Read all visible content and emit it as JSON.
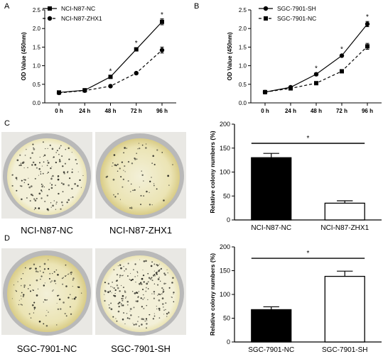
{
  "panel_labels": [
    "A",
    "B",
    "C",
    "D"
  ],
  "colors": {
    "ink": "#000000",
    "dish_rim": "#b9b9b9",
    "dish_light": "#f3f0d8",
    "dish_warm": "#ebe4b4",
    "dish_edge_warm": "#d9cc86",
    "dish_bg": "#e9e8e4",
    "colony_dots": "#2d2d25"
  },
  "photos": {
    "C": {
      "left_caption": "NCI-N87-NC",
      "right_caption": "NCI-N87-ZHX1"
    },
    "D": {
      "left_caption": "SGC-7901-NC",
      "right_caption": "SGC-7901-SH"
    }
  },
  "chart_data": [
    {
      "panel": "A",
      "type": "line",
      "ylabel": "OD Value (450nm)",
      "xlabel": "",
      "categories": [
        "0 h",
        "24 h",
        "48 h",
        "72 h",
        "96 h"
      ],
      "ylim": [
        0,
        2.5
      ],
      "yticks": [
        0.0,
        0.5,
        1.0,
        1.5,
        2.0,
        2.5
      ],
      "ytick_labels": [
        "0.0",
        "0.5",
        "1.0",
        "1.5",
        "2.0",
        "2.5"
      ],
      "series": [
        {
          "name": "NCI-N87-NC",
          "marker": "square",
          "dash": "solid",
          "values": [
            0.28,
            0.34,
            0.7,
            1.44,
            2.18
          ],
          "errors": [
            0.02,
            0.02,
            0.03,
            0.03,
            0.08
          ]
        },
        {
          "name": "NCI-N87-ZHX1",
          "marker": "circle",
          "dash": "dashed",
          "values": [
            0.27,
            0.33,
            0.45,
            0.8,
            1.42
          ],
          "errors": [
            0.02,
            0.02,
            0.02,
            0.03,
            0.08
          ]
        }
      ],
      "significance": [
        {
          "category": "48 h",
          "y": 0.85,
          "text": "*"
        },
        {
          "category": "72 h",
          "y": 1.6,
          "text": "*"
        },
        {
          "category": "96 h",
          "y": 2.37,
          "text": "*"
        }
      ],
      "legend": "top-left"
    },
    {
      "panel": "B",
      "type": "line",
      "ylabel": "OD Value (450nm)",
      "xlabel": "",
      "categories": [
        "0 h",
        "24 h",
        "48 h",
        "72 h",
        "96 h"
      ],
      "ylim": [
        0,
        2.5
      ],
      "yticks": [
        0.0,
        0.5,
        1.0,
        1.5,
        2.0,
        2.5
      ],
      "ytick_labels": [
        "0.0",
        "0.5",
        "1.0",
        "1.5",
        "2.0",
        "2.5"
      ],
      "series": [
        {
          "name": "SGC-7901-SH",
          "marker": "circle",
          "dash": "solid",
          "values": [
            0.29,
            0.42,
            0.77,
            1.27,
            2.12
          ],
          "errors": [
            0.02,
            0.02,
            0.04,
            0.03,
            0.07
          ]
        },
        {
          "name": "SGC-7901-NC",
          "marker": "square",
          "dash": "dashed",
          "values": [
            0.29,
            0.39,
            0.53,
            0.85,
            1.52
          ],
          "errors": [
            0.02,
            0.02,
            0.02,
            0.03,
            0.08
          ]
        }
      ],
      "significance": [
        {
          "category": "48 h",
          "y": 0.93,
          "text": "*"
        },
        {
          "category": "72 h",
          "y": 1.44,
          "text": "*"
        },
        {
          "category": "96 h",
          "y": 2.31,
          "text": "*"
        }
      ],
      "legend": "top-left"
    },
    {
      "panel": "C",
      "type": "bar",
      "ylabel": "Relative colony numbers (%)",
      "xlabel": "",
      "categories": [
        "NCI-N87-NC",
        "NCI-N87-ZHX1"
      ],
      "values": [
        130,
        35
      ],
      "errors": [
        9,
        5
      ],
      "fills": [
        "#000000",
        "#ffffff"
      ],
      "ylim": [
        0,
        200
      ],
      "yticks": [
        0,
        50,
        100,
        150,
        200
      ],
      "ytick_labels": [
        "0",
        "50",
        "100",
        "150",
        "200"
      ],
      "significance": {
        "y": 160,
        "text": "*"
      }
    },
    {
      "panel": "D",
      "type": "bar",
      "ylabel": "Relative colony numbers (%)",
      "xlabel": "",
      "categories": [
        "SGC-7901-NC",
        "SGC-7901-SH"
      ],
      "values": [
        68,
        138
      ],
      "errors": [
        6,
        11
      ],
      "fills": [
        "#000000",
        "#ffffff"
      ],
      "ylim": [
        0,
        200
      ],
      "yticks": [
        0,
        50,
        100,
        150,
        200
      ],
      "ytick_labels": [
        "0",
        "50",
        "100",
        "150",
        "200"
      ],
      "significance": {
        "y": 176,
        "text": "*"
      }
    }
  ]
}
